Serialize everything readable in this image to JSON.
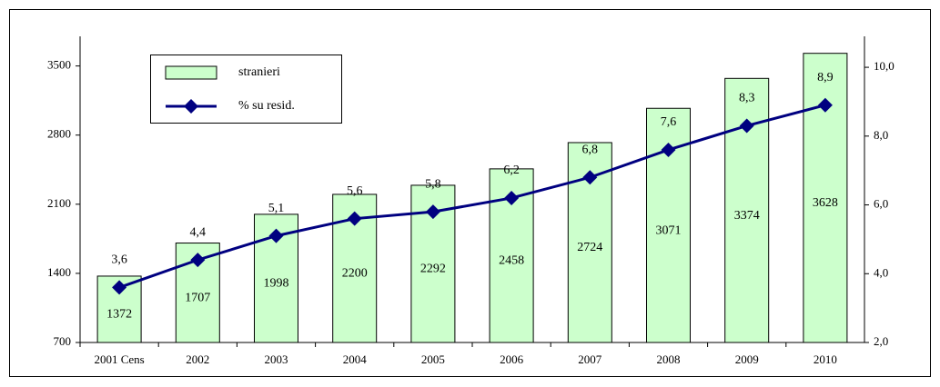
{
  "chart_data": {
    "type": "bar_line",
    "categories": [
      "2001 Cens",
      "2002",
      "2003",
      "2004",
      "2005",
      "2006",
      "2007",
      "2008",
      "2009",
      "2010"
    ],
    "series": [
      {
        "name": "stranieri",
        "color": "#ccffcc",
        "values": [
          1372,
          1707,
          1998,
          2200,
          2292,
          2458,
          2724,
          3071,
          3374,
          3628
        ]
      },
      {
        "name": "% su resid.",
        "color": "#000080",
        "axis": "y2",
        "values": [
          3.6,
          4.4,
          5.1,
          5.6,
          5.8,
          6.2,
          6.8,
          7.6,
          8.3,
          8.9
        ],
        "value_labels": [
          "3,6",
          "4,4",
          "5,1",
          "5,6",
          "5,8",
          "6,2",
          "6,8",
          "7,6",
          "8,3",
          "8,9"
        ]
      }
    ],
    "ylim": [
      700,
      3800
    ],
    "yticks": [
      700,
      1400,
      2100,
      2800,
      3500
    ],
    "y2lim": [
      2,
      10.9
    ],
    "y2ticks": [
      {
        "value": 2,
        "label": "2,0"
      },
      {
        "value": 4,
        "label": "4,0"
      },
      {
        "value": 6,
        "label": "6,0"
      },
      {
        "value": 8,
        "label": "8,0"
      },
      {
        "value": 10,
        "label": "10,0"
      }
    ],
    "legend": "top-left"
  }
}
